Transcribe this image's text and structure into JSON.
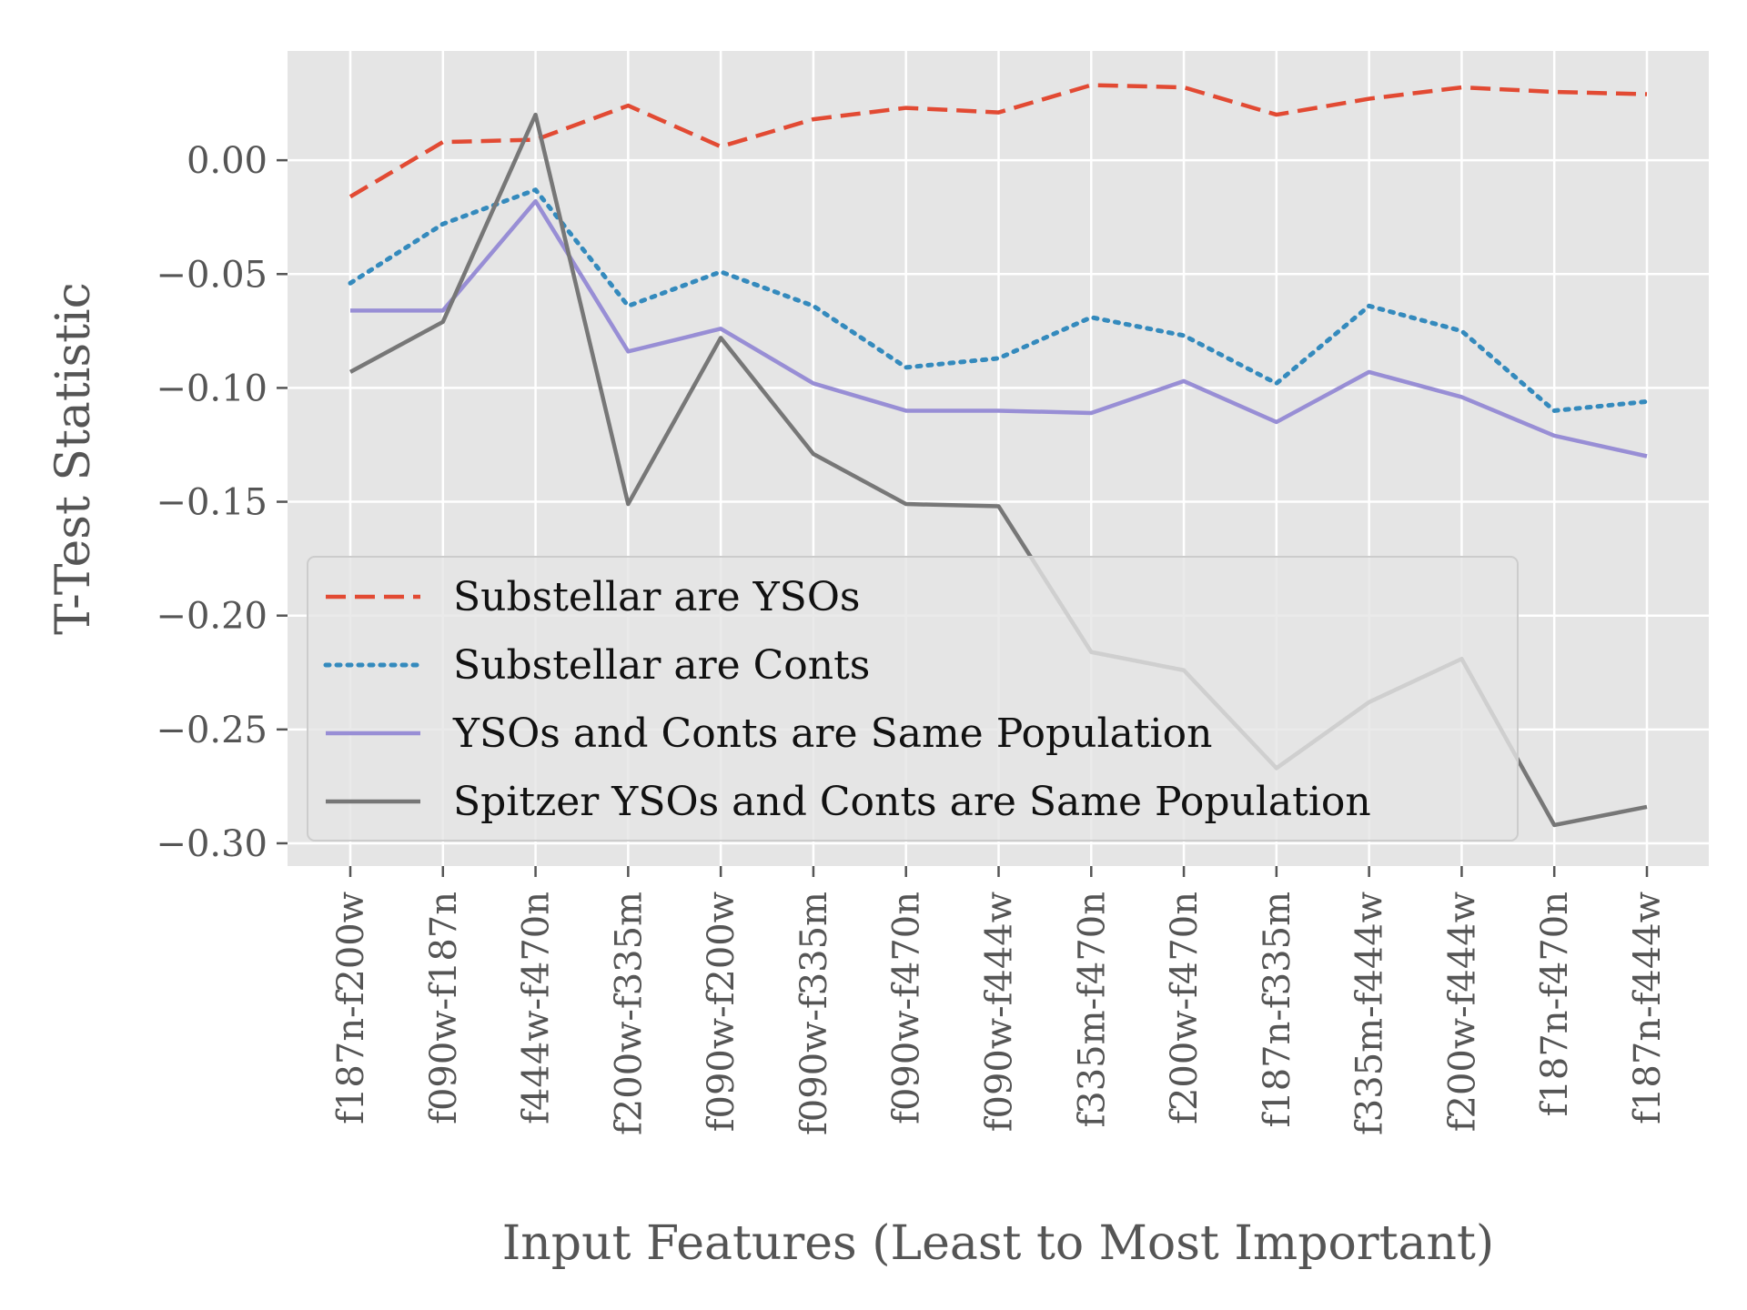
{
  "chart_data": {
    "type": "line",
    "xlabel": "Input Features (Least to Most Important)",
    "ylabel": "T-Test Statistic",
    "ylim": [
      -0.31,
      0.048
    ],
    "yticks": [
      0.0,
      -0.05,
      -0.1,
      -0.15,
      -0.2,
      -0.25,
      -0.3
    ],
    "ytick_labels": [
      "0.00",
      "−0.05",
      "−0.10",
      "−0.15",
      "−0.20",
      "−0.25",
      "−0.30"
    ],
    "grid": true,
    "legend_position": "lower-left",
    "background": "#e5e5e5",
    "categories": [
      "f187n-f200w",
      "f090w-f187n",
      "f444w-f470n",
      "f200w-f335m",
      "f090w-f200w",
      "f090w-f335m",
      "f090w-f470n",
      "f090w-f444w",
      "f335m-f470n",
      "f200w-f470n",
      "f187n-f335m",
      "f335m-f444w",
      "f200w-f444w",
      "f187n-f470n",
      "f187n-f444w"
    ],
    "series": [
      {
        "name": "Substellar are YSOs",
        "color": "#e24a33",
        "style": "dashed",
        "values": [
          -0.016,
          0.008,
          0.009,
          0.024,
          0.006,
          0.018,
          0.023,
          0.021,
          0.033,
          0.032,
          0.02,
          0.027,
          0.032,
          0.03,
          0.029
        ]
      },
      {
        "name": "Substellar are Conts",
        "color": "#348abd",
        "style": "dotted",
        "values": [
          -0.054,
          -0.028,
          -0.013,
          -0.064,
          -0.049,
          -0.064,
          -0.091,
          -0.087,
          -0.069,
          -0.077,
          -0.098,
          -0.064,
          -0.075,
          -0.11,
          -0.106
        ]
      },
      {
        "name": "YSOs and Conts are Same Population",
        "color": "#988ed5",
        "style": "solid",
        "values": [
          -0.066,
          -0.066,
          -0.018,
          -0.084,
          -0.074,
          -0.098,
          -0.11,
          -0.11,
          -0.111,
          -0.097,
          -0.115,
          -0.093,
          -0.104,
          -0.121,
          -0.13
        ]
      },
      {
        "name": "Spitzer YSOs and Conts are Same Population",
        "color": "#777777",
        "style": "solid",
        "values": [
          -0.093,
          -0.071,
          0.02,
          -0.151,
          -0.078,
          -0.129,
          -0.151,
          -0.152,
          -0.216,
          -0.224,
          -0.267,
          -0.238,
          -0.219,
          -0.292,
          -0.284
        ]
      }
    ]
  }
}
